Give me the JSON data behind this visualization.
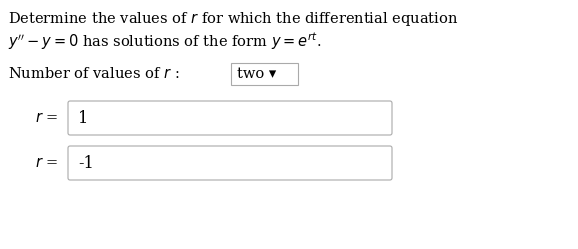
{
  "bg_color": "#ffffff",
  "border_color": "#aaaaaa",
  "text_color": "#000000",
  "title_line1": "Determine the values of $r$ for which the differential equation",
  "title_line2": "$y^{\\prime\\prime} - y = 0$ has solutions of the form $y = e^{rt}$.",
  "label_num": "Number of values of $r$ :",
  "dropdown_text": "two ▾",
  "r_label1": "$r$ =",
  "r_value1": "1",
  "r_label2": "$r$ =",
  "r_value2": "-1",
  "fig_width": 5.78,
  "fig_height": 2.49,
  "dpi": 100,
  "font_size_title": 10.5,
  "font_size_box": 11.5,
  "font_size_dropdown": 10.5
}
